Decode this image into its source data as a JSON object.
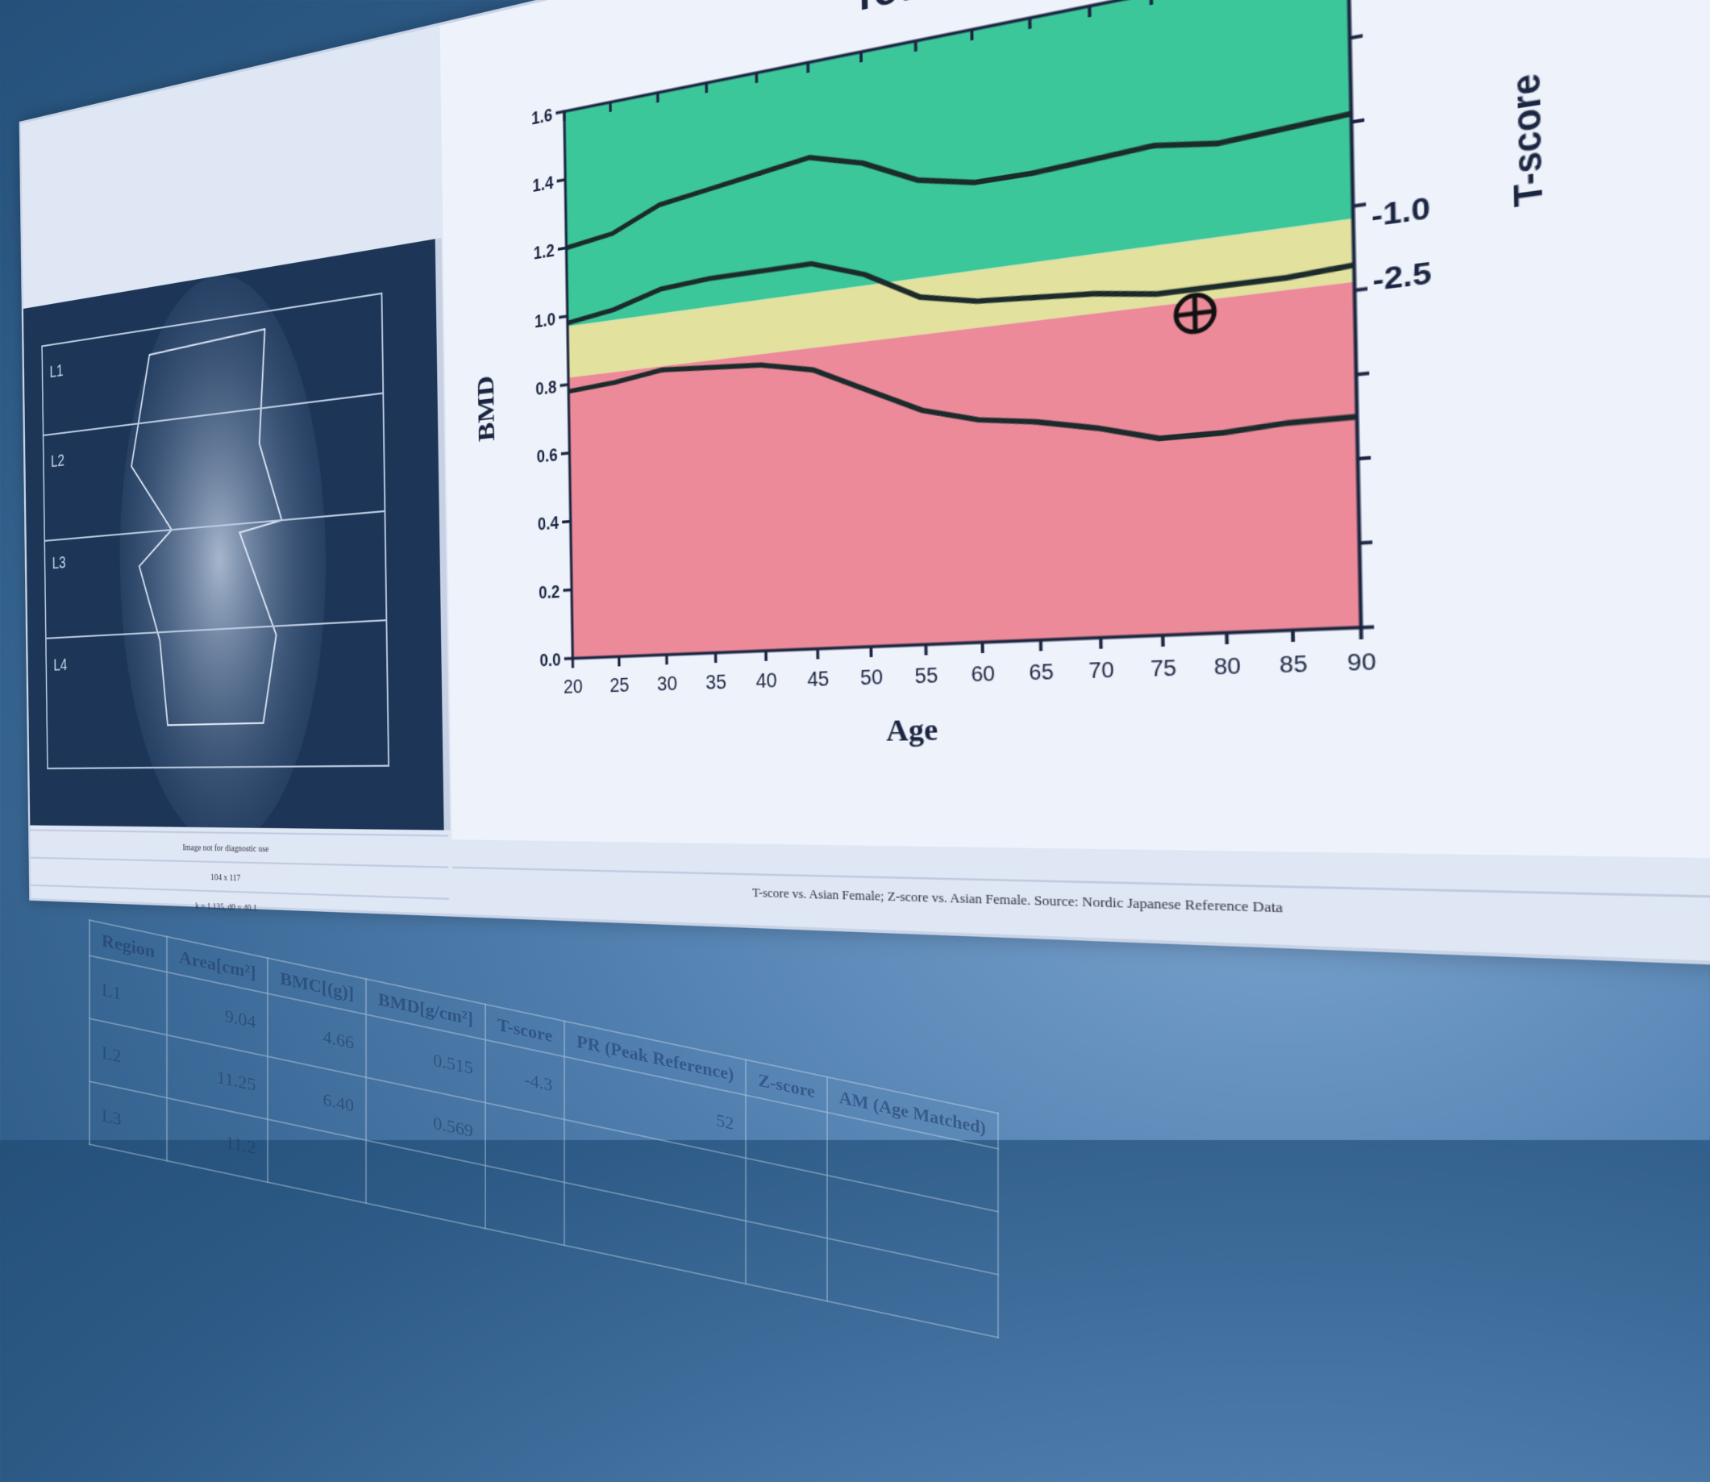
{
  "spine_image": {
    "labels": [
      "L1",
      "L2",
      "L3",
      "L4"
    ],
    "captions": [
      "Image not for diagnostic use",
      "104 x 117",
      "k = 1.135, d0 = 40.1"
    ]
  },
  "chart_footer": "T-score vs. Asian Female; Z-score vs. Asian Female. Source: Nordic Japanese Reference Data",
  "chart_data": {
    "type": "line",
    "title": "Total",
    "xlabel": "Age",
    "ylabel": "BMD",
    "y2label": "T-score",
    "xlim": [
      20,
      90
    ],
    "ylim": [
      0.0,
      1.6
    ],
    "x_ticks": [
      "20",
      "25",
      "30",
      "35",
      "40",
      "45",
      "50",
      "55",
      "60",
      "65",
      "70",
      "75",
      "80",
      "85",
      "90"
    ],
    "y_ticks": [
      "0.0",
      "0.2",
      "0.4",
      "0.6",
      "0.8",
      "1.0",
      "1.2",
      "1.4",
      "1.6"
    ],
    "y2_ticks": [
      {
        "label": "-1.0",
        "bmd": 0.97
      },
      {
        "label": "-2.5",
        "bmd": 0.82
      }
    ],
    "bands": [
      {
        "from": 0.97,
        "to": 1.6,
        "color": "#3cc79a"
      },
      {
        "from": 0.82,
        "to": 0.97,
        "color": "#e2e19e"
      },
      {
        "from": 0.0,
        "to": 0.82,
        "color": "#ec8a9a"
      }
    ],
    "x": [
      20,
      25,
      30,
      35,
      40,
      45,
      50,
      55,
      60,
      65,
      70,
      75,
      80,
      85,
      90
    ],
    "series": [
      {
        "values": [
          1.2,
          1.22,
          1.28,
          1.3,
          1.32,
          1.34,
          1.3,
          1.23,
          1.2,
          1.2,
          1.21,
          1.22,
          1.2,
          1.21,
          1.22
        ]
      },
      {
        "values": [
          0.98,
          1.0,
          1.04,
          1.05,
          1.05,
          1.05,
          1.0,
          0.92,
          0.89,
          0.88,
          0.87,
          0.85,
          0.85,
          0.85,
          0.86
        ]
      },
      {
        "values": [
          0.78,
          0.79,
          0.81,
          0.8,
          0.79,
          0.76,
          0.69,
          0.62,
          0.58,
          0.56,
          0.53,
          0.49,
          0.49,
          0.5,
          0.5
        ]
      }
    ],
    "patient_point": {
      "age": 78,
      "bmd": 0.79
    },
    "grid": false
  },
  "results_table": {
    "headers": [
      "Region",
      "Area[cm²]",
      "BMC[(g)]",
      "BMD[g/cm²]",
      "T-score",
      "PR (Peak Reference)",
      "Z-score",
      "AM (Age Matched)"
    ],
    "rows": [
      [
        "L1",
        "9.04",
        "4.66",
        "0.515",
        "-4.3",
        "52",
        "",
        ""
      ],
      [
        "L2",
        "11.25",
        "6.40",
        "0.569",
        "",
        "",
        "",
        ""
      ],
      [
        "L3",
        "11.2",
        "",
        "",
        "",
        "",
        "",
        ""
      ]
    ]
  }
}
